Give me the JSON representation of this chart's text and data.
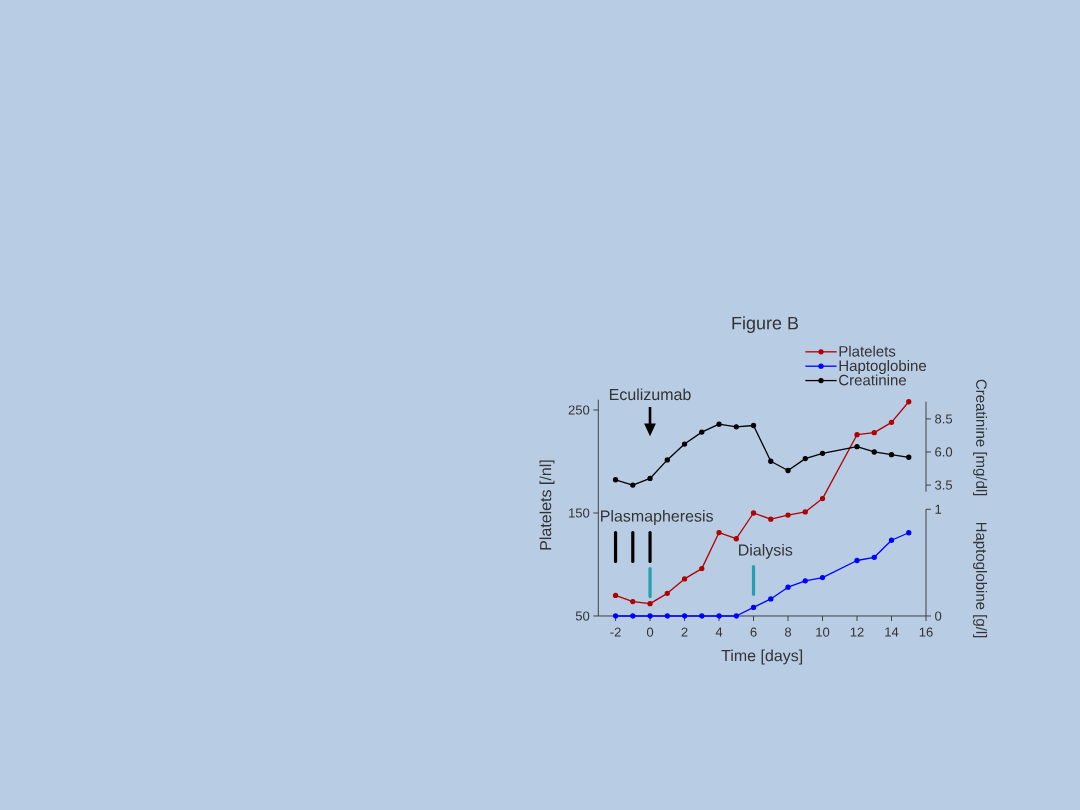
{
  "chart_data": {
    "type": "line",
    "title": "Figure B",
    "xlabel": "Time [days]",
    "ylabel": "Platelets [/nl]",
    "y2label": "Creatinine [mg/dl]",
    "y3label": "Haptoglobine [g/l]",
    "x": [
      -2,
      -1,
      0,
      1,
      2,
      3,
      4,
      5,
      6,
      7,
      8,
      9,
      10,
      12,
      13,
      14,
      15
    ],
    "xlim": [
      -3,
      16
    ],
    "xticks": [
      -2,
      0,
      2,
      4,
      6,
      8,
      10,
      12,
      14,
      16
    ],
    "ylim": [
      50,
      260
    ],
    "yticks": [
      50,
      150,
      250
    ],
    "y2lim": [
      3,
      9.8
    ],
    "y2ticks": [
      3.5,
      {
        "value": 6,
        "label": "6.0"
      },
      8.5
    ],
    "y3lim": [
      0,
      1
    ],
    "y3ticks": [
      0,
      1
    ],
    "legend": "top right",
    "marker": "circle",
    "series": [
      {
        "name": "Platelets",
        "color": "#b20000",
        "values": [
          70,
          64,
          62,
          72,
          86,
          96,
          131,
          125,
          150,
          144,
          148,
          151,
          164,
          226,
          228,
          238,
          258
        ]
      },
      {
        "name": "Haptoglobine",
        "color": "#0000ff",
        "axis": "y3",
        "values": [
          0,
          0,
          0,
          0,
          0,
          0,
          0,
          0,
          0.08,
          0.16,
          0.27,
          0.33,
          0.36,
          0.52,
          0.55,
          0.71,
          0.78
        ]
      },
      {
        "name": "Creatinine",
        "color": "#000000",
        "axis": "y2",
        "values": [
          3.9,
          3.5,
          4.0,
          5.4,
          6.6,
          7.5,
          8.1,
          7.9,
          8.0,
          5.3,
          4.6,
          5.5,
          5.9,
          6.4,
          6.0,
          5.8,
          5.6
        ]
      },
      {
        "name": "Plasmapheresis",
        "type": "bar",
        "color": "#000000",
        "x": [
          -2,
          -1,
          0
        ],
        "base": [
          103,
          103,
          103
        ],
        "values": [
          28,
          28,
          28
        ]
      },
      {
        "name": "Dialysis",
        "type": "bar",
        "color": "#20a0b0",
        "x": [
          0,
          6
        ],
        "base": [
          69,
          71
        ],
        "values": [
          27,
          27
        ]
      }
    ],
    "annotations": [
      "Eculizumab"
    ]
  }
}
